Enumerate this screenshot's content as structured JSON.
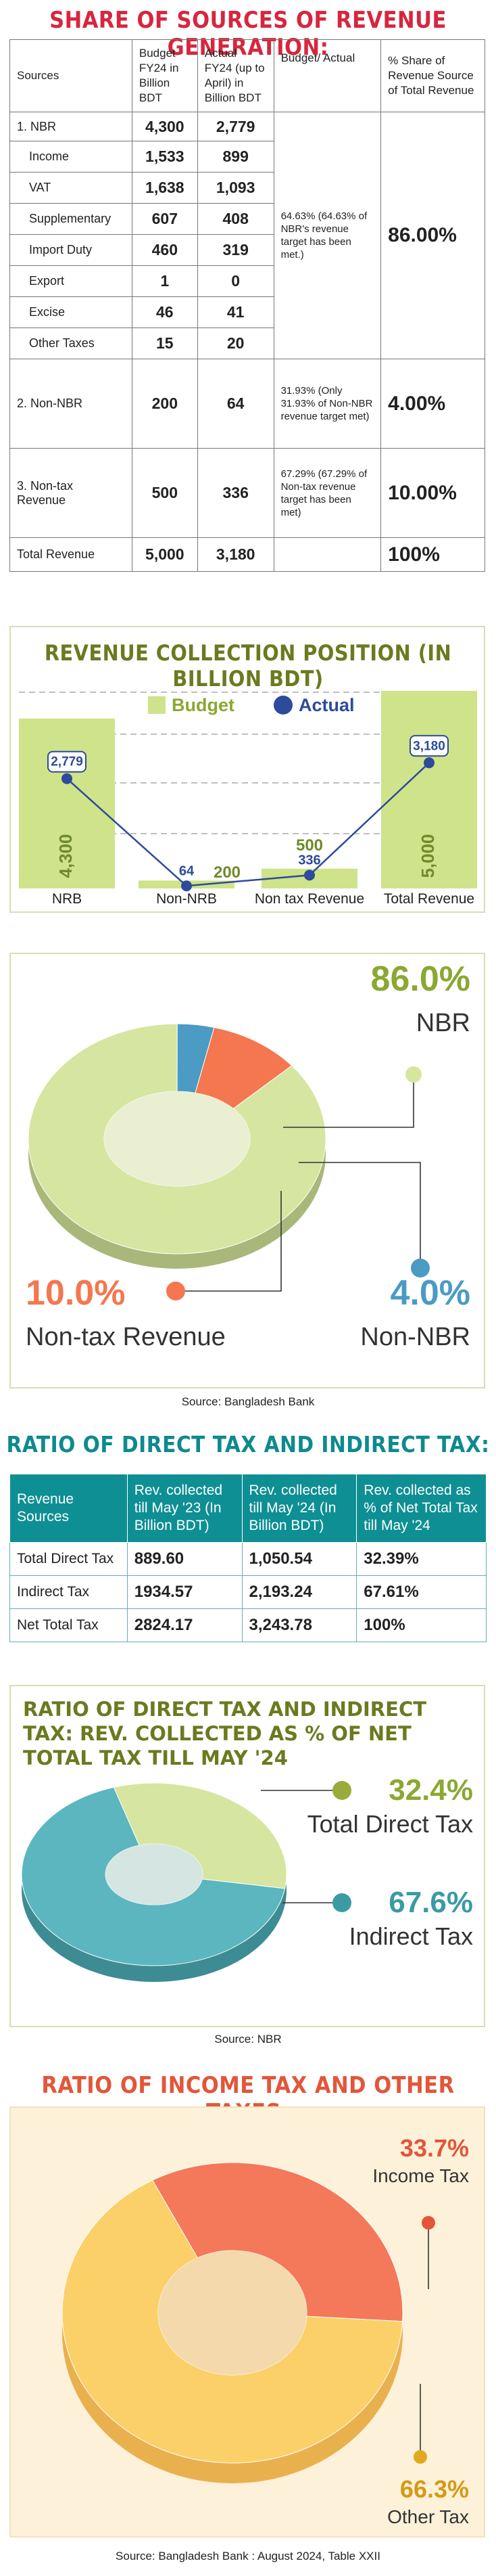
{
  "revenue_table": {
    "title": "SHARE OF SOURCES OF REVENUE GENERATION:",
    "headers": [
      "Sources",
      "Budget FY24 in Billion BDT",
      "Actual FY24 (up to April) in Billion BDT",
      "Budget/ Actual",
      "% Share of Revenue Source of Total Revenue"
    ],
    "rows": [
      {
        "source": "1.  NBR",
        "budget": "4,300",
        "actual": "2,779"
      },
      {
        "source": "Income",
        "budget": "1,533",
        "actual": "899"
      },
      {
        "source": "VAT",
        "budget": "1,638",
        "actual": "1,093"
      },
      {
        "source": "Supplementary",
        "budget": "607",
        "actual": "408"
      },
      {
        "source": "Import Duty",
        "budget": "460",
        "actual": "319"
      },
      {
        "source": "Export",
        "budget": "1",
        "actual": "0"
      },
      {
        "source": "Excise",
        "budget": "46",
        "actual": "41"
      },
      {
        "source": "Other Taxes",
        "budget": "15",
        "actual": "20"
      },
      {
        "source": "2.  Non-NBR",
        "budget": "200",
        "actual": "64"
      },
      {
        "source": "3.  Non-tax Revenue",
        "budget": "500",
        "actual": "336"
      },
      {
        "source": "Total Revenue",
        "budget": "5,000",
        "actual": "3,180"
      }
    ],
    "notes": {
      "nbr": "64.63% (64.63% of NBR's revenue target has been met.)",
      "nonnbr": "31.93% (Only 31.93% of Non-NBR revenue target met)",
      "nontax": "67.29% (67.29% of Non-tax revenue target has been met)"
    },
    "shares": {
      "nbr": "86.00%",
      "nonnbr": "4.00%",
      "nontax": "10.00%",
      "total": "100%"
    }
  },
  "charts": {
    "collection": {
      "type": "bar",
      "title": "REVENUE COLLECTION POSITION (IN BILLION BDT)",
      "categories": [
        "NRB",
        "Non-NRB",
        "Non tax Revenue",
        "Total Revenue"
      ],
      "series": [
        {
          "name": "Budget",
          "values": [
            4300,
            200,
            500,
            5000
          ],
          "labels": [
            "4,300",
            "200",
            "500",
            "5,000"
          ]
        },
        {
          "name": "Actual",
          "values": [
            2779,
            64,
            336,
            3180
          ],
          "labels": [
            "2,779",
            "64",
            "336",
            "3,180"
          ]
        }
      ],
      "ylim": [
        0,
        5000
      ],
      "colors": {
        "budget": "#cfe38a",
        "actual": "#2d4a9b"
      }
    },
    "share_donut": {
      "type": "pie",
      "slices": [
        {
          "name": "NBR",
          "value": 86.0,
          "label": "86.0%",
          "color": "#d6e5a0"
        },
        {
          "name": "Non-NBR",
          "value": 4.0,
          "label": "4.0%",
          "color": "#4b9bc4"
        },
        {
          "name": "Non-tax Revenue",
          "value": 10.0,
          "label": "10.0%",
          "color": "#f4774f"
        }
      ],
      "source": "Source: Bangladesh Bank"
    },
    "tax_donut": {
      "type": "pie",
      "title": "RATIO OF DIRECT TAX AND INDIRECT TAX: REV. COLLECTED AS % OF NET TOTAL TAX TILL MAY '24",
      "slices": [
        {
          "name": "Total Direct Tax",
          "value": 32.4,
          "label": "32.4%",
          "color": "#d6e5a0"
        },
        {
          "name": "Indirect Tax",
          "value": 67.6,
          "label": "67.6%",
          "color": "#5bb6bf"
        }
      ],
      "source": "Source: NBR"
    },
    "income_donut": {
      "type": "pie",
      "title": "RATIO OF INCOME TAX AND OTHER TAXES:",
      "inner_title": "RATIO OF INCOME TAX AND OTHER TAXES",
      "slices": [
        {
          "name": "Income Tax",
          "value": 33.7,
          "label": "33.7%",
          "color": "#f4785a"
        },
        {
          "name": "Other Tax",
          "value": 66.3,
          "label": "66.3%",
          "color": "#fcd068"
        }
      ],
      "source": "Source: Bangladesh Bank : August 2024, Table XXII"
    }
  },
  "tax_table": {
    "title": "RATIO OF DIRECT TAX AND INDIRECT TAX:",
    "headers": [
      "Revenue Sources",
      "Rev. collected till May '23 (In Billion BDT)",
      "Rev. collected till May '24 (In Billion BDT)",
      "Rev. collected as % of Net Total Tax till May '24"
    ],
    "rows": [
      [
        "Total Direct Tax",
        "889.60",
        "1,050.54",
        "32.39%"
      ],
      [
        "Indirect Tax",
        "1934.57",
        "2,193.24",
        "67.61%"
      ],
      [
        "Net Total Tax",
        "2824.17",
        "3,243.78",
        "100%"
      ]
    ]
  }
}
